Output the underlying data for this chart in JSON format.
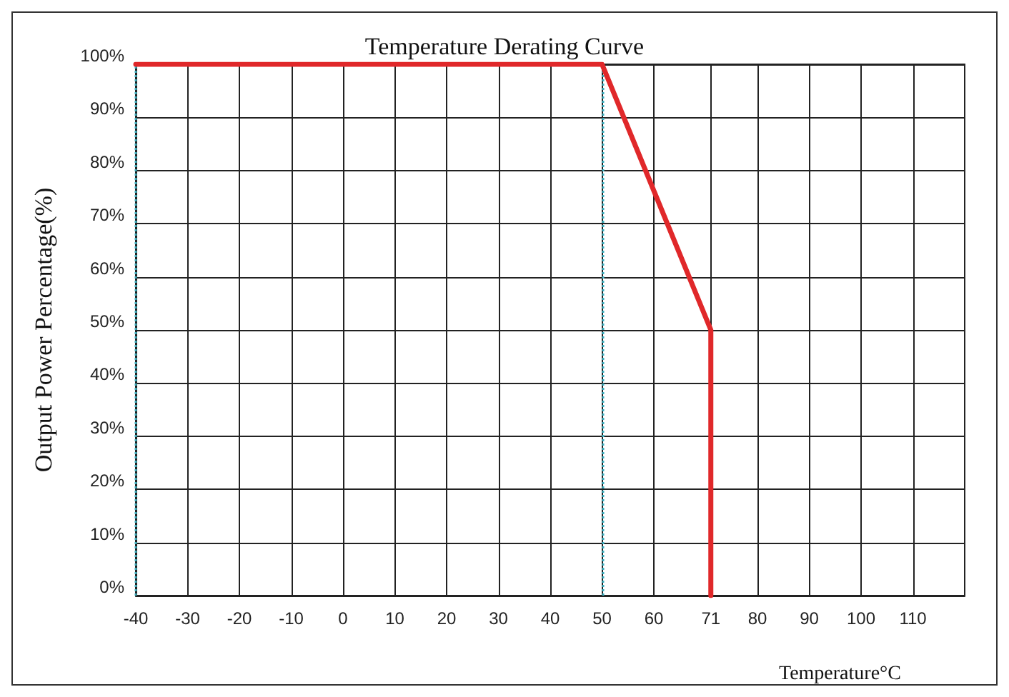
{
  "chart_data": {
    "type": "line",
    "title": "Temperature Derating Curve",
    "xlabel": "Temperature°C",
    "ylabel": "Output Power Percentage(%)",
    "x": [
      -40,
      50,
      71,
      71
    ],
    "series": [
      {
        "color": "#e0282a",
        "values": [
          100,
          100,
          50,
          0
        ]
      }
    ],
    "xlim": [
      -40,
      120
    ],
    "xticks": [
      -40,
      -30,
      -20,
      -10,
      0,
      10,
      20,
      30,
      40,
      50,
      60,
      71,
      80,
      90,
      100,
      110
    ],
    "ylim": [
      0,
      100
    ],
    "yticks": [
      {
        "value": 0,
        "label": "0%"
      },
      {
        "value": 10,
        "label": "10%"
      },
      {
        "value": 20,
        "label": "20%"
      },
      {
        "value": 30,
        "label": "30%"
      },
      {
        "value": 40,
        "label": "40%"
      },
      {
        "value": 50,
        "label": "50%"
      },
      {
        "value": 60,
        "label": "60%"
      },
      {
        "value": 70,
        "label": "70%"
      },
      {
        "value": 80,
        "label": "80%"
      },
      {
        "value": 90,
        "label": "90%"
      },
      {
        "value": 100,
        "label": "100%"
      }
    ],
    "ref_lines": [
      {
        "axis": "x",
        "value": -40,
        "color": "#3fb0c0",
        "line_style": "dotted"
      },
      {
        "axis": "x",
        "value": 50,
        "color": "#3fb0c0",
        "line_style": "dotted"
      }
    ],
    "grid": true,
    "marker": "none",
    "line_style": "solid"
  }
}
